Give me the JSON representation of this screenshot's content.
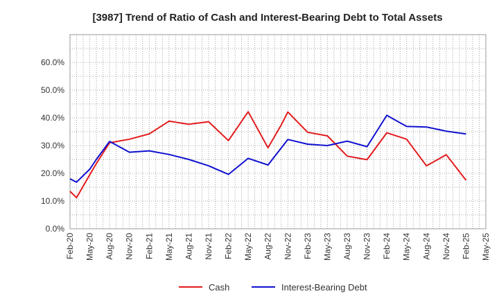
{
  "chart_data": {
    "type": "line",
    "title": "[3987]  Trend of Ratio of Cash and Interest-Bearing Debt to Total Assets",
    "xlabel": "",
    "ylabel": "",
    "ylim": [
      0,
      70
    ],
    "yticks": [
      0,
      10,
      20,
      30,
      40,
      50,
      60
    ],
    "ytick_labels": [
      "0.0%",
      "10.0%",
      "20.0%",
      "30.0%",
      "40.0%",
      "50.0%",
      "60.0%"
    ],
    "x_labels": [
      "Feb-20",
      "May-20",
      "Aug-20",
      "Nov-20",
      "Feb-21",
      "May-21",
      "Aug-21",
      "Nov-21",
      "Feb-22",
      "May-22",
      "Aug-22",
      "Nov-22",
      "Feb-23",
      "May-23",
      "Aug-23",
      "Nov-23",
      "Feb-24",
      "May-24",
      "Aug-24",
      "Nov-24",
      "Feb-25",
      "May-25"
    ],
    "grid": true,
    "legend_position": "bottom-center",
    "series": [
      {
        "name": "Cash",
        "color": "#e31a1c",
        "points": [
          {
            "x": 0,
            "y": 13.5
          },
          {
            "x": 0.33,
            "y": 11.2
          },
          {
            "x": 1,
            "y": 19.5
          },
          {
            "x": 1.33,
            "y": 23.5
          },
          {
            "x": 2,
            "y": 31.0
          },
          {
            "x": 3,
            "y": 32.3
          },
          {
            "x": 4,
            "y": 34.2
          },
          {
            "x": 5,
            "y": 38.8
          },
          {
            "x": 6,
            "y": 37.7
          },
          {
            "x": 7,
            "y": 38.6
          },
          {
            "x": 8,
            "y": 31.8
          },
          {
            "x": 9,
            "y": 42.2
          },
          {
            "x": 10,
            "y": 29.2
          },
          {
            "x": 10.67,
            "y": 37.5
          },
          {
            "x": 11,
            "y": 42.1
          },
          {
            "x": 12,
            "y": 34.8
          },
          {
            "x": 13,
            "y": 33.5
          },
          {
            "x": 14,
            "y": 26.2
          },
          {
            "x": 15,
            "y": 24.9
          },
          {
            "x": 16,
            "y": 34.6
          },
          {
            "x": 17,
            "y": 32.3
          },
          {
            "x": 18,
            "y": 22.7
          },
          {
            "x": 19,
            "y": 26.7
          },
          {
            "x": 20,
            "y": 17.5
          }
        ]
      },
      {
        "name": "Interest-Bearing Debt",
        "color": "#1010d0",
        "points": [
          {
            "x": 0,
            "y": 18.0
          },
          {
            "x": 0.33,
            "y": 16.8
          },
          {
            "x": 1,
            "y": 21.5
          },
          {
            "x": 1.33,
            "y": 25.0
          },
          {
            "x": 2,
            "y": 31.5
          },
          {
            "x": 3,
            "y": 27.6
          },
          {
            "x": 4,
            "y": 28.1
          },
          {
            "x": 5,
            "y": 26.8
          },
          {
            "x": 6,
            "y": 25.0
          },
          {
            "x": 7,
            "y": 22.7
          },
          {
            "x": 8,
            "y": 19.6
          },
          {
            "x": 9,
            "y": 25.4
          },
          {
            "x": 10,
            "y": 23.0
          },
          {
            "x": 11,
            "y": 32.2
          },
          {
            "x": 12,
            "y": 30.5
          },
          {
            "x": 13,
            "y": 30.0
          },
          {
            "x": 14,
            "y": 31.6
          },
          {
            "x": 15,
            "y": 29.6
          },
          {
            "x": 16,
            "y": 40.9
          },
          {
            "x": 17,
            "y": 36.9
          },
          {
            "x": 18,
            "y": 36.7
          },
          {
            "x": 19,
            "y": 35.2
          },
          {
            "x": 20,
            "y": 34.2
          }
        ]
      }
    ]
  }
}
